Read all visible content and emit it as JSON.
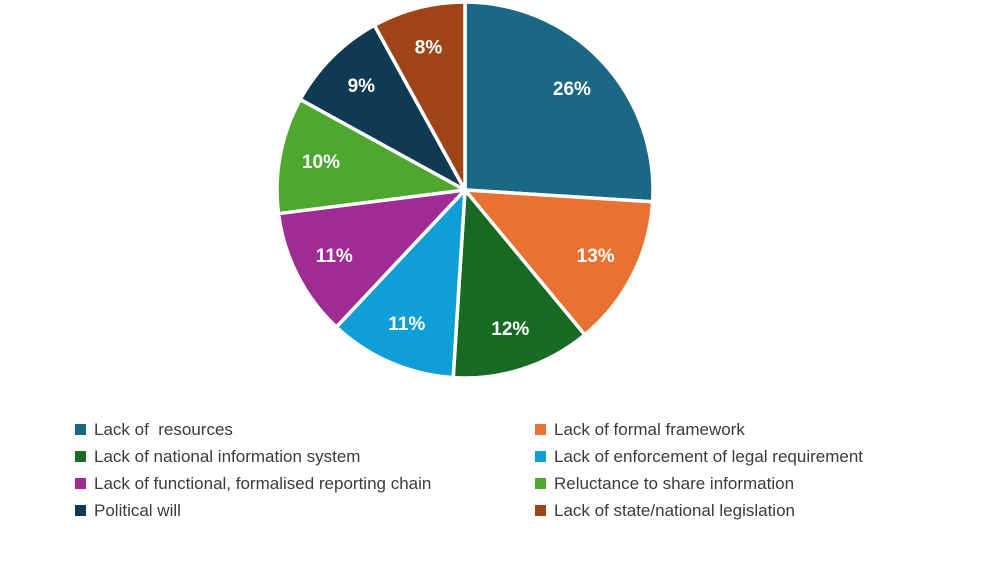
{
  "chart_data": {
    "type": "pie",
    "title": "",
    "start_angle_deg": 0,
    "direction": "clockwise",
    "legend_position": "bottom",
    "legend_columns": 2,
    "slice_border_color": "#ffffff",
    "data_label_color": "#ffffff",
    "slices": [
      {
        "label": "Lack of  resources",
        "value": 26,
        "color": "#1B6884",
        "data_label": "26%"
      },
      {
        "label": "Lack of formal framework",
        "value": 13,
        "color": "#E97132",
        "data_label": "13%"
      },
      {
        "label": "Lack of national information system",
        "value": 12,
        "color": "#196B24",
        "data_label": "12%"
      },
      {
        "label": "Lack of enforcement of legal requirement",
        "value": 11,
        "color": "#0F9ED5",
        "data_label": "11%"
      },
      {
        "label": "Lack of functional, formalised reporting chain",
        "value": 11,
        "color": "#A02B93",
        "data_label": "11%"
      },
      {
        "label": "Reluctance to share information",
        "value": 10,
        "color": "#4EA72E",
        "data_label": "10%"
      },
      {
        "label": "Political will",
        "value": 9,
        "color": "#0F3A52",
        "data_label": "9%"
      },
      {
        "label": "Lack of state/national legislation",
        "value": 8,
        "color": "#9E4417",
        "data_label": "8%"
      }
    ]
  }
}
